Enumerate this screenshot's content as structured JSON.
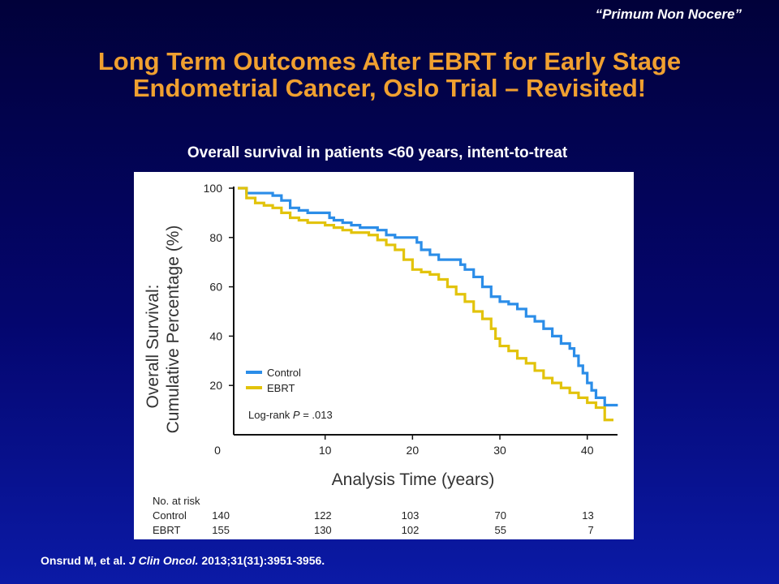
{
  "header": {
    "motto": "“Primum Non Nocere”",
    "title_line1": "Long Term Outcomes After EBRT for Early Stage",
    "title_line2": "Endometrial Cancer, Oslo Trial – Revisited!"
  },
  "chart_data": {
    "type": "line",
    "title": "Overall survival in patients <60 years, intent-to-treat",
    "xlabel": "Analysis Time (years)",
    "ylabel_line1": "Overall Survival:",
    "ylabel_line2": "Cumulative Percentage (%)",
    "xlim": [
      0,
      43
    ],
    "ylim": [
      0,
      100
    ],
    "x_ticks": [
      0,
      10,
      20,
      30,
      40
    ],
    "y_ticks": [
      20,
      40,
      60,
      80,
      100
    ],
    "grid": false,
    "legend_position": "bottom-left",
    "annotation_prefix": "Log-rank ",
    "annotation_p": "P",
    "annotation_suffix": " = .013",
    "series": [
      {
        "name": "Control",
        "color": "#2b8de8",
        "points": [
          [
            0,
            100
          ],
          [
            1,
            98
          ],
          [
            3,
            98
          ],
          [
            4,
            97
          ],
          [
            5,
            95
          ],
          [
            6,
            92
          ],
          [
            7,
            91
          ],
          [
            8,
            90
          ],
          [
            10,
            90
          ],
          [
            10.5,
            88
          ],
          [
            11,
            87
          ],
          [
            12,
            86
          ],
          [
            13,
            85
          ],
          [
            14,
            84
          ],
          [
            16,
            83
          ],
          [
            17,
            81
          ],
          [
            18,
            80
          ],
          [
            20,
            80
          ],
          [
            20.5,
            78
          ],
          [
            21,
            75
          ],
          [
            22,
            73
          ],
          [
            23,
            71
          ],
          [
            25,
            71
          ],
          [
            25.5,
            69
          ],
          [
            26,
            67
          ],
          [
            27,
            64
          ],
          [
            28,
            60
          ],
          [
            29,
            56
          ],
          [
            30,
            54
          ],
          [
            31,
            53
          ],
          [
            32,
            51
          ],
          [
            33,
            48
          ],
          [
            34,
            46
          ],
          [
            35,
            43
          ],
          [
            36,
            40
          ],
          [
            37,
            37
          ],
          [
            38,
            35
          ],
          [
            38.5,
            32
          ],
          [
            39,
            28
          ],
          [
            39.5,
            25
          ],
          [
            40,
            21
          ],
          [
            40.5,
            18
          ],
          [
            41,
            15
          ],
          [
            42,
            15
          ],
          [
            42,
            12
          ],
          [
            43.5,
            12
          ]
        ]
      },
      {
        "name": "EBRT",
        "color": "#e2c30b",
        "points": [
          [
            0,
            100
          ],
          [
            1,
            96
          ],
          [
            2,
            94
          ],
          [
            3,
            93
          ],
          [
            4,
            92
          ],
          [
            5,
            90
          ],
          [
            6,
            88
          ],
          [
            7,
            87
          ],
          [
            8,
            86
          ],
          [
            10,
            85
          ],
          [
            11,
            84
          ],
          [
            12,
            83
          ],
          [
            13,
            82
          ],
          [
            14,
            82
          ],
          [
            15,
            81
          ],
          [
            16,
            79
          ],
          [
            17,
            77
          ],
          [
            18,
            75
          ],
          [
            19,
            71
          ],
          [
            20,
            67
          ],
          [
            21,
            66
          ],
          [
            22,
            65
          ],
          [
            23,
            63
          ],
          [
            24,
            60
          ],
          [
            25,
            57
          ],
          [
            26,
            54
          ],
          [
            27,
            50
          ],
          [
            28,
            47
          ],
          [
            29,
            43
          ],
          [
            29.5,
            39
          ],
          [
            30,
            36
          ],
          [
            31,
            34
          ],
          [
            32,
            31
          ],
          [
            33,
            29
          ],
          [
            34,
            26
          ],
          [
            35,
            23
          ],
          [
            36,
            21
          ],
          [
            37,
            19
          ],
          [
            38,
            17
          ],
          [
            39,
            15
          ],
          [
            40,
            13
          ],
          [
            41,
            11
          ],
          [
            42,
            9
          ],
          [
            42,
            6
          ],
          [
            43,
            6
          ]
        ]
      }
    ],
    "risk_table": {
      "header": "No. at risk",
      "times": [
        0,
        10,
        20,
        30,
        40
      ],
      "rows": [
        {
          "label": "Control",
          "values": [
            140,
            122,
            103,
            70,
            13
          ]
        },
        {
          "label": "EBRT",
          "values": [
            155,
            130,
            102,
            55,
            7
          ]
        }
      ]
    }
  },
  "citation": {
    "authors": "Onsrud M, et al. ",
    "journal": "J Clin Oncol.",
    "details": " 2013;31(31):3951-3956."
  }
}
